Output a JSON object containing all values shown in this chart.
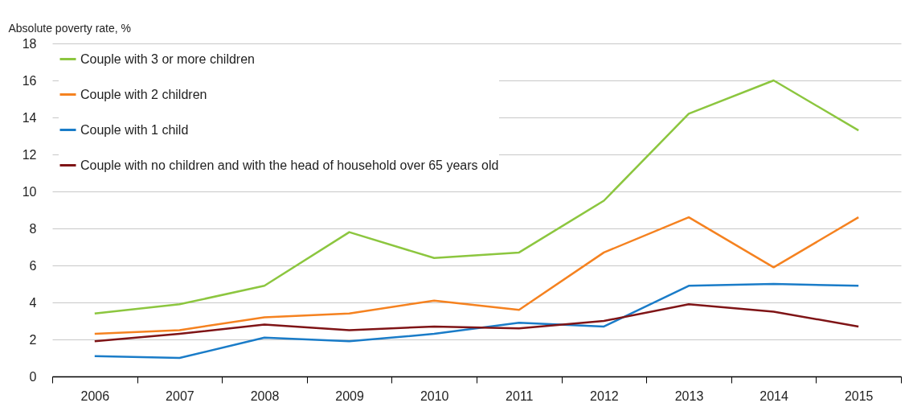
{
  "chart_data": {
    "type": "line",
    "ylabel": "Absolute poverty rate, %",
    "categories": [
      "2006",
      "2007",
      "2008",
      "2009",
      "2010",
      "2011",
      "2012",
      "2013",
      "2014",
      "2015"
    ],
    "series": [
      {
        "name": "Couple with 3 or more children",
        "color": "#8cc63f",
        "values": [
          3.4,
          3.9,
          4.9,
          7.8,
          6.4,
          6.7,
          9.5,
          14.2,
          16.0,
          13.3
        ]
      },
      {
        "name": "Couple with 2 children",
        "color": "#f58220",
        "values": [
          2.3,
          2.5,
          3.2,
          3.4,
          4.1,
          3.6,
          6.7,
          8.6,
          5.9,
          8.6
        ]
      },
      {
        "name": "Couple with 1 child",
        "color": "#1a7cc8",
        "values": [
          1.1,
          1.0,
          2.1,
          1.9,
          2.3,
          2.9,
          2.7,
          4.9,
          5.0,
          4.9
        ]
      },
      {
        "name": "Couple with no children and with the head of household over 65 years old",
        "color": "#7f1416",
        "values": [
          1.9,
          2.3,
          2.8,
          2.5,
          2.7,
          2.6,
          3.0,
          3.9,
          3.5,
          2.7
        ]
      }
    ],
    "ylim": [
      0,
      18
    ],
    "yticks": [
      0,
      2,
      4,
      6,
      8,
      10,
      12,
      14,
      16,
      18
    ],
    "grid": "y",
    "legend": "top left",
    "marker": "none",
    "line_style": "solid"
  }
}
